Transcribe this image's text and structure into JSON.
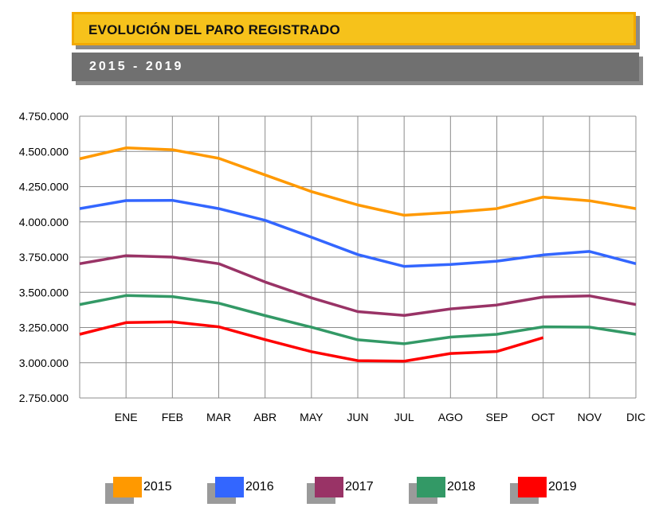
{
  "header": {
    "title": "EVOLUCIÓN DEL PARO REGISTRADO",
    "subtitle": "2015 - 2019",
    "title_bg": "#f6c21b",
    "subtitle_bg": "#707070"
  },
  "chart_data": {
    "type": "line",
    "title": "EVOLUCIÓN DEL PARO REGISTRADO",
    "subtitle": "2015 - 2019",
    "xlabel": "",
    "ylabel": "",
    "categories": [
      "ENE",
      "FEB",
      "MAR",
      "ABR",
      "MAY",
      "JUN",
      "JUL",
      "AGO",
      "SEP",
      "OCT",
      "NOV",
      "DIC"
    ],
    "ylim": [
      2750000,
      4750000
    ],
    "yticks": [
      2750000,
      3000000,
      3250000,
      3500000,
      3750000,
      4000000,
      4250000,
      4500000,
      4750000
    ],
    "ytick_labels": [
      "2.750.000",
      "3.000.000",
      "3.250.000",
      "3.500.000",
      "3.750.000",
      "4.000.000",
      "4.250.000",
      "4.500.000",
      "4.750.000"
    ],
    "grid": true,
    "legend_position": "bottom",
    "series": [
      {
        "name": "2015",
        "color": "#ff9900",
        "values": [
          4525000,
          4512000,
          4451000,
          4333000,
          4215000,
          4120000,
          4047000,
          4067000,
          4094000,
          4176000,
          4150000,
          4094000
        ],
        "start_value": 4448000
      },
      {
        "name": "2016",
        "color": "#3366ff",
        "values": [
          4151000,
          4153000,
          4094000,
          4011000,
          3891000,
          3768000,
          3684000,
          3698000,
          3721000,
          3765000,
          3790000,
          3703000
        ],
        "start_value": 4094000
      },
      {
        "name": "2017",
        "color": "#993366",
        "values": [
          3760000,
          3750000,
          3703000,
          3573000,
          3461000,
          3363000,
          3336000,
          3382000,
          3410000,
          3467000,
          3475000,
          3413000
        ],
        "start_value": 3703000
      },
      {
        "name": "2018",
        "color": "#339966",
        "values": [
          3477000,
          3470000,
          3423000,
          3335000,
          3252000,
          3163000,
          3135000,
          3182000,
          3202000,
          3255000,
          3253000,
          3202000
        ],
        "start_value": 3413000
      },
      {
        "name": "2019",
        "color": "#ff0000",
        "values": [
          3285000,
          3290000,
          3255000,
          3164000,
          3079000,
          3015000,
          3011000,
          3066000,
          3080000,
          3178000,
          null,
          null
        ],
        "start_value": 3202000
      }
    ]
  }
}
